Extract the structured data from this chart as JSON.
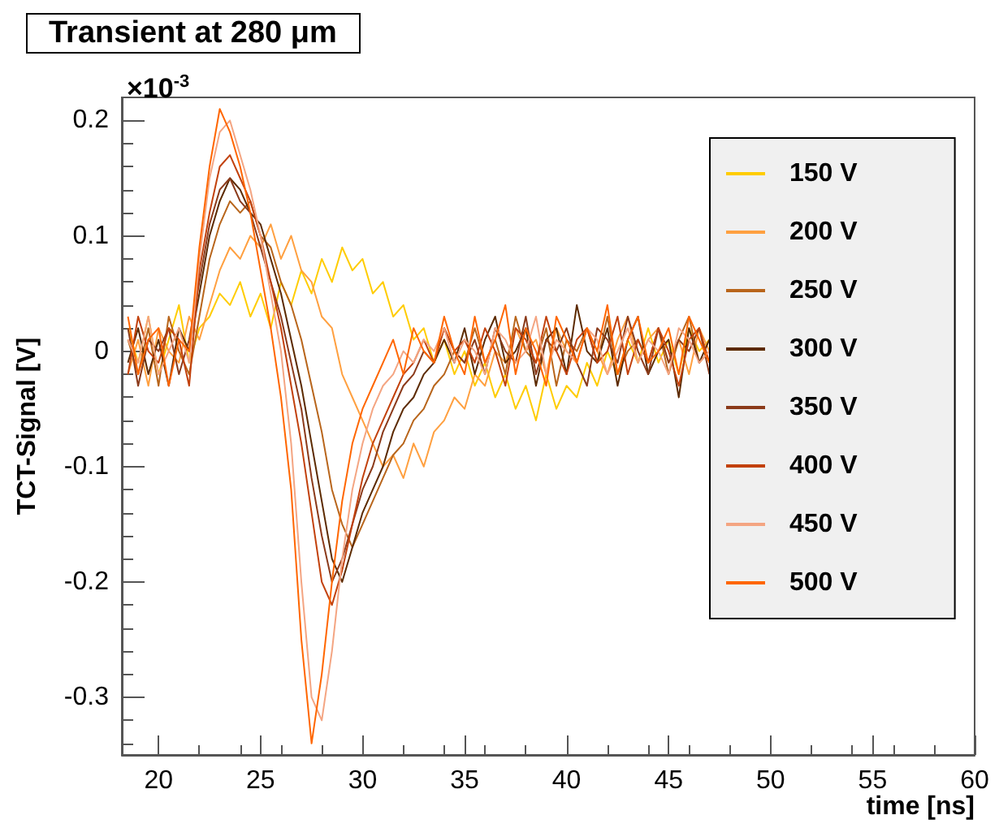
{
  "chart_data": {
    "type": "line",
    "title": "Transient at 280 μm",
    "xlabel": "time [ns]",
    "ylabel": "TCT-Signal [V]",
    "annotations": [
      "×10$^{-3}$"
    ],
    "x": [
      18.5,
      19,
      19.5,
      20,
      20.5,
      21,
      21.5,
      22,
      22.5,
      23,
      23.5,
      24,
      24.5,
      25,
      25.5,
      26,
      26.5,
      27,
      27.5,
      28,
      28.5,
      29,
      29.5,
      30,
      30.5,
      31,
      31.5,
      32,
      32.5,
      33,
      33.5,
      34,
      34.5,
      35,
      35.5,
      36,
      36.5,
      37,
      37.5,
      38,
      38.5,
      39,
      39.5,
      40,
      40.5,
      41,
      41.5,
      42,
      42.5,
      43,
      43.5,
      44,
      44.5,
      45,
      45.5,
      46,
      46.5,
      47
    ],
    "series": [
      {
        "name": "150 V",
        "color": "#ffcc00",
        "values": [
          0.02,
          -0.01,
          0.03,
          -0.02,
          0.01,
          0.04,
          -0.01,
          0.02,
          0.03,
          0.05,
          0.04,
          0.06,
          0.03,
          0.05,
          0.02,
          0.06,
          0.04,
          0.07,
          0.05,
          0.08,
          0.06,
          0.09,
          0.07,
          0.08,
          0.05,
          0.06,
          0.03,
          0.04,
          0.01,
          0.02,
          -0.01,
          0.01,
          -0.02,
          0,
          -0.03,
          -0.01,
          -0.04,
          -0.02,
          -0.05,
          -0.03,
          -0.06,
          -0.02,
          -0.05,
          -0.03,
          -0.04,
          -0.01,
          -0.03,
          0,
          -0.02,
          0.01,
          -0.01,
          0.02,
          -0.01,
          0.01,
          -0.02,
          0.02,
          0,
          0.01
        ]
      },
      {
        "name": "200 V",
        "color": "#ffa040",
        "values": [
          -0.02,
          0.01,
          -0.03,
          0.02,
          0,
          -0.01,
          0.03,
          0.01,
          0.04,
          0.07,
          0.09,
          0.08,
          0.1,
          0.09,
          0.11,
          0.08,
          0.1,
          0.07,
          0.06,
          0.03,
          0.02,
          -0.02,
          -0.04,
          -0.06,
          -0.08,
          -0.1,
          -0.09,
          -0.11,
          -0.08,
          -0.1,
          -0.07,
          -0.06,
          -0.04,
          -0.05,
          -0.02,
          -0.03,
          0,
          -0.01,
          0.02,
          0,
          0.01,
          -0.02,
          0.02,
          0,
          -0.01,
          0.02,
          0,
          -0.02,
          0.01,
          0.03,
          -0.01,
          0.01,
          0.02,
          -0.01,
          0.01,
          -0.02,
          0.02,
          0
        ]
      },
      {
        "name": "250 V",
        "color": "#b8651b",
        "values": [
          0.01,
          -0.02,
          0.02,
          -0.03,
          0.03,
          0,
          -0.02,
          0.03,
          0.08,
          0.11,
          0.13,
          0.12,
          0.13,
          0.1,
          0.09,
          0.06,
          0.04,
          0.01,
          -0.03,
          -0.07,
          -0.12,
          -0.15,
          -0.17,
          -0.15,
          -0.13,
          -0.11,
          -0.09,
          -0.08,
          -0.06,
          -0.05,
          -0.03,
          -0.02,
          0,
          -0.01,
          0.02,
          -0.01,
          0.01,
          -0.02,
          0.03,
          0,
          -0.01,
          0.02,
          -0.03,
          0.01,
          0,
          0.02,
          -0.01,
          0.03,
          -0.02,
          0,
          0.01,
          -0.01,
          0.02,
          -0.02,
          0.01,
          0.03,
          -0.01,
          0
        ]
      },
      {
        "name": "300 V",
        "color": "#5c2a00",
        "values": [
          -0.01,
          0.02,
          -0.02,
          0.01,
          -0.03,
          0.02,
          0,
          0.05,
          0.1,
          0.13,
          0.15,
          0.14,
          0.12,
          0.11,
          0.08,
          0.05,
          0.01,
          -0.03,
          -0.08,
          -0.13,
          -0.18,
          -0.2,
          -0.17,
          -0.14,
          -0.12,
          -0.1,
          -0.07,
          -0.05,
          -0.04,
          -0.02,
          -0.01,
          0.01,
          -0.01,
          0.02,
          -0.02,
          0.01,
          0.03,
          -0.01,
          0,
          0.02,
          -0.03,
          0.01,
          0.02,
          -0.02,
          0.04,
          0,
          -0.01,
          0.02,
          -0.03,
          0.01,
          0.03,
          -0.02,
          0,
          0.01,
          -0.04,
          0.02,
          -0.01,
          0.01
        ]
      },
      {
        "name": "350 V",
        "color": "#8b3a1a",
        "values": [
          0.02,
          -0.03,
          0.01,
          0,
          0.02,
          -0.02,
          0.01,
          0.06,
          0.11,
          0.14,
          0.15,
          0.13,
          0.12,
          0.09,
          0.06,
          0.03,
          -0.01,
          -0.05,
          -0.11,
          -0.16,
          -0.2,
          -0.18,
          -0.15,
          -0.12,
          -0.1,
          -0.07,
          -0.05,
          -0.03,
          -0.02,
          0,
          -0.01,
          0.02,
          0,
          -0.01,
          0.01,
          -0.02,
          0.02,
          0,
          -0.01,
          0.03,
          -0.02,
          0.01,
          0,
          0.02,
          -0.01,
          -0.03,
          0.02,
          0.01,
          -0.01,
          0.03,
          0,
          -0.02,
          0.02,
          -0.01,
          0.01,
          0,
          0.02,
          -0.02
        ]
      },
      {
        "name": "400 V",
        "color": "#c2410c",
        "values": [
          -0.02,
          0.03,
          0,
          -0.01,
          0.02,
          0.01,
          -0.03,
          0.07,
          0.12,
          0.16,
          0.17,
          0.15,
          0.13,
          0.1,
          0.06,
          0.02,
          -0.03,
          -0.08,
          -0.14,
          -0.2,
          -0.22,
          -0.19,
          -0.15,
          -0.11,
          -0.08,
          -0.06,
          -0.04,
          -0.02,
          -0.01,
          0.01,
          -0.01,
          0.02,
          0,
          0.01,
          -0.01,
          0.02,
          0,
          -0.03,
          0.02,
          0.01,
          -0.01,
          0.03,
          0,
          -0.02,
          0.01,
          0.02,
          -0.01,
          0,
          0.03,
          -0.02,
          0.01,
          -0.01,
          0.02,
          0,
          -0.03,
          0.01,
          0.02,
          -0.01
        ]
      },
      {
        "name": "450 V",
        "color": "#f4a582",
        "values": [
          0.01,
          -0.01,
          0.03,
          -0.02,
          0,
          0.02,
          -0.01,
          0.08,
          0.15,
          0.19,
          0.2,
          0.17,
          0.14,
          0.1,
          0.05,
          0,
          -0.08,
          -0.2,
          -0.3,
          -0.32,
          -0.26,
          -0.18,
          -0.12,
          -0.08,
          -0.05,
          -0.03,
          -0.02,
          0,
          -0.01,
          0.01,
          0,
          0.02,
          -0.01,
          0.01,
          0,
          -0.02,
          0.02,
          0.01,
          -0.01,
          0,
          0.03,
          -0.02,
          0.01,
          0,
          -0.01,
          0.02,
          0.01,
          -0.02,
          0,
          0.02,
          -0.01,
          0.01,
          0,
          -0.02,
          0.02,
          0.01,
          -0.01,
          0
        ]
      },
      {
        "name": "500 V",
        "color": "#ff6600",
        "values": [
          0.03,
          -0.02,
          0.01,
          0.02,
          -0.03,
          0.01,
          0,
          0.09,
          0.16,
          0.21,
          0.19,
          0.16,
          0.12,
          0.07,
          0.02,
          -0.04,
          -0.12,
          -0.25,
          -0.34,
          -0.28,
          -0.2,
          -0.13,
          -0.08,
          -0.05,
          -0.03,
          -0.01,
          0.01,
          -0.02,
          0.02,
          0,
          -0.01,
          0.03,
          0,
          -0.02,
          0.03,
          -0.01,
          0.01,
          0.04,
          -0.02,
          0.02,
          0,
          -0.03,
          0.03,
          0.01,
          -0.01,
          0.02,
          0,
          0.04,
          -0.02,
          0.01,
          0.03,
          -0.01,
          0,
          0.02,
          -0.02,
          0.03,
          0.01,
          -0.01
        ]
      }
    ],
    "xlim": [
      18.2,
      60
    ],
    "xticks": [
      20,
      25,
      30,
      35,
      40,
      45,
      50,
      55,
      60
    ],
    "ylim": [
      -0.35,
      0.22
    ],
    "yticks": [
      -0.3,
      -0.2,
      -0.1,
      0,
      0.1,
      0.2
    ],
    "grid": false,
    "legend": "right",
    "marker": "none",
    "line_style": "solid"
  }
}
